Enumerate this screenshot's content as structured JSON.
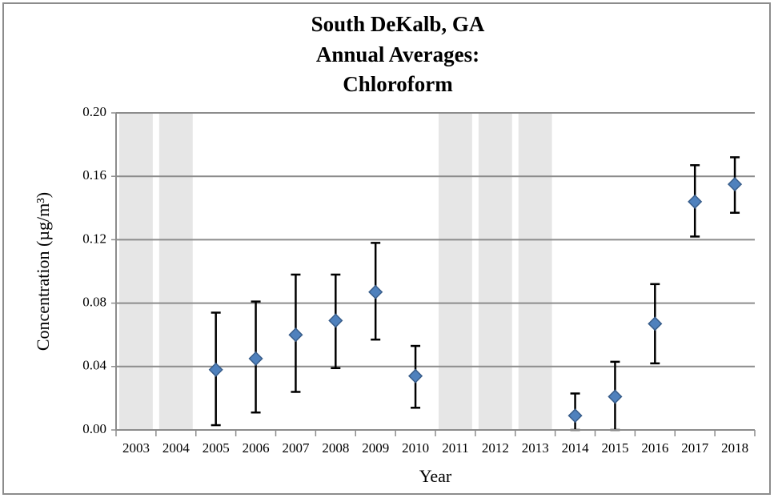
{
  "chart_data": {
    "type": "scatter",
    "title": [
      "South DeKalb, GA",
      "Annual Averages:",
      "Chloroform"
    ],
    "x_label": "Year",
    "y_label": "Concentration (µg/m³)",
    "categories": [
      "2003",
      "2004",
      "2005",
      "2006",
      "2007",
      "2008",
      "2009",
      "2010",
      "2011",
      "2012",
      "2013",
      "2014",
      "2015",
      "2016",
      "2017",
      "2018"
    ],
    "series": [
      {
        "color": "#4f81bd",
        "values": [
          null,
          null,
          0.038,
          0.045,
          0.06,
          0.069,
          0.087,
          0.034,
          null,
          null,
          null,
          0.009,
          0.021,
          0.067,
          0.144,
          0.155
        ],
        "lower": [
          null,
          null,
          0.003,
          0.011,
          0.024,
          0.039,
          0.057,
          0.014,
          null,
          null,
          null,
          0.0,
          0.0,
          0.042,
          0.122,
          0.137
        ],
        "upper": [
          null,
          null,
          0.074,
          0.081,
          0.098,
          0.098,
          0.118,
          0.053,
          null,
          null,
          null,
          0.023,
          0.043,
          0.092,
          0.167,
          0.172
        ]
      }
    ],
    "ylim": [
      0,
      0.2
    ],
    "yticks": [
      {
        "value": 0,
        "label": "0.00"
      },
      0.04,
      0.08,
      0.12,
      0.16,
      {
        "value": 0.2,
        "label": "0.20"
      }
    ],
    "grid": true,
    "no_data_shading": "#e6e6e6"
  }
}
